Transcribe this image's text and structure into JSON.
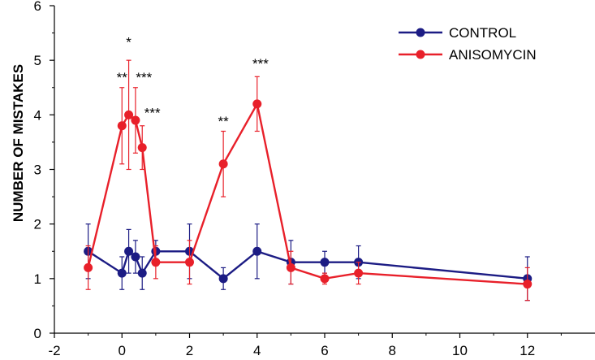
{
  "chart_data": {
    "type": "line",
    "title": "",
    "xlabel": "",
    "ylabel": "NUMBER OF MISTAKES",
    "xlim": [
      -2,
      14
    ],
    "ylim": [
      0,
      6
    ],
    "x_ticks": [
      -2,
      0,
      2,
      4,
      6,
      8,
      10,
      12
    ],
    "y_ticks": [
      0,
      1,
      2,
      3,
      4,
      5,
      6
    ],
    "grid": false,
    "legend_position": "top-right",
    "series": [
      {
        "name": "CONTROL",
        "color": "#1c1c84",
        "points": [
          {
            "x": -1,
            "y": 1.5,
            "err": 0.5
          },
          {
            "x": 0,
            "y": 1.1,
            "err": 0.3
          },
          {
            "x": 0.2,
            "y": 1.5,
            "err": 0.4
          },
          {
            "x": 0.4,
            "y": 1.4,
            "err": 0.3
          },
          {
            "x": 0.6,
            "y": 1.1,
            "err": 0.3
          },
          {
            "x": 1,
            "y": 1.5,
            "err": 0.2
          },
          {
            "x": 2,
            "y": 1.5,
            "err": 0.5
          },
          {
            "x": 3,
            "y": 1.0,
            "err": 0.2
          },
          {
            "x": 4,
            "y": 1.5,
            "err": 0.5
          },
          {
            "x": 5,
            "y": 1.3,
            "err": 0.4
          },
          {
            "x": 6,
            "y": 1.3,
            "err": 0.2
          },
          {
            "x": 7,
            "y": 1.3,
            "err": 0.3
          },
          {
            "x": 12,
            "y": 1.0,
            "err": 0.4
          }
        ]
      },
      {
        "name": "ANISOMYCIN",
        "color": "#e8202a",
        "points": [
          {
            "x": -1,
            "y": 1.2,
            "err": 0.4
          },
          {
            "x": 0,
            "y": 3.8,
            "err": 0.7
          },
          {
            "x": 0.2,
            "y": 4.0,
            "err": 1.0
          },
          {
            "x": 0.4,
            "y": 3.9,
            "err": 0.6
          },
          {
            "x": 0.6,
            "y": 3.4,
            "err": 0.4
          },
          {
            "x": 1,
            "y": 1.3,
            "err": 0.3
          },
          {
            "x": 2,
            "y": 1.3,
            "err": 0.4
          },
          {
            "x": 3,
            "y": 3.1,
            "err": 0.6
          },
          {
            "x": 4,
            "y": 4.2,
            "err": 0.5
          },
          {
            "x": 5,
            "y": 1.2,
            "err": 0.3
          },
          {
            "x": 6,
            "y": 1.0,
            "err": 0.1
          },
          {
            "x": 7,
            "y": 1.1,
            "err": 0.2
          },
          {
            "x": 12,
            "y": 0.9,
            "err": 0.3
          }
        ]
      }
    ],
    "annotations": [
      {
        "text": "*",
        "x": 0.2,
        "y": 5.25
      },
      {
        "text": "**",
        "x": 0.0,
        "y": 4.6
      },
      {
        "text": "***",
        "x": 0.65,
        "y": 4.6
      },
      {
        "text": "***",
        "x": 0.9,
        "y": 3.95
      },
      {
        "text": "**",
        "x": 3.0,
        "y": 3.8
      },
      {
        "text": "***",
        "x": 4.1,
        "y": 4.85
      }
    ]
  }
}
